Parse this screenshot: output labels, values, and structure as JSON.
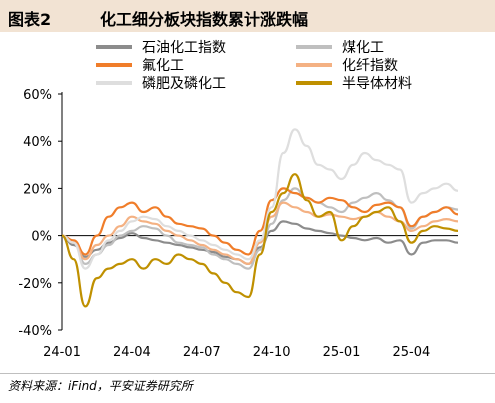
{
  "header": {
    "figure_label": "图表2",
    "title": "化工细分板块指数累计涨跌幅"
  },
  "footer": {
    "source": "资料来源：iFind，平安证券研究所"
  },
  "chart_data": {
    "type": "line",
    "title": "化工细分板块指数累计涨跌幅",
    "xlabel": "",
    "ylabel": "",
    "x_ticks": [
      "24-01",
      "24-04",
      "24-07",
      "24-10",
      "25-01",
      "25-04"
    ],
    "y_ticks": [
      "60%",
      "40%",
      "20%",
      "0%",
      "-20%",
      "-40%"
    ],
    "ylim": [
      -40,
      60
    ],
    "grid": false,
    "legend_position": "top",
    "x": [
      "2024-01",
      "2024-01",
      "2024-02",
      "2024-02",
      "2024-03",
      "2024-03",
      "2024-04",
      "2024-04",
      "2024-05",
      "2024-05",
      "2024-06",
      "2024-06",
      "2024-07",
      "2024-07",
      "2024-08",
      "2024-08",
      "2024-09",
      "2024-09",
      "2024-10",
      "2024-10",
      "2024-11",
      "2024-11",
      "2024-12",
      "2024-12",
      "2025-01",
      "2025-01",
      "2025-02",
      "2025-02",
      "2025-03",
      "2025-03",
      "2025-04",
      "2025-04",
      "2025-05",
      "2025-05",
      "2025-06"
    ],
    "series": [
      {
        "name": "石油化工指数",
        "color": "#8c8c8c",
        "values": [
          0,
          -4,
          -9,
          -6,
          -3,
          -1,
          1,
          -1,
          -2,
          -3,
          -4,
          -5,
          -6,
          -7,
          -9,
          -10,
          -12,
          -5,
          2,
          6,
          5,
          3,
          2,
          1,
          0,
          -1,
          -2,
          -1,
          -3,
          -2,
          -8,
          -3,
          -2,
          -2,
          -3
        ]
      },
      {
        "name": "煤化工",
        "color": "#bfbfbf",
        "values": [
          0,
          -3,
          -12,
          -8,
          -4,
          0,
          2,
          4,
          3,
          0,
          -3,
          -4,
          -5,
          -8,
          -10,
          -12,
          -14,
          -6,
          5,
          15,
          20,
          16,
          14,
          12,
          10,
          14,
          16,
          18,
          15,
          12,
          3,
          8,
          10,
          12,
          11
        ]
      },
      {
        "name": "氟化工",
        "color": "#f07d2a",
        "values": [
          0,
          -2,
          -8,
          0,
          8,
          12,
          14,
          10,
          12,
          8,
          5,
          4,
          3,
          0,
          -3,
          -6,
          -8,
          2,
          15,
          20,
          18,
          16,
          14,
          16,
          15,
          12,
          10,
          13,
          14,
          12,
          4,
          8,
          10,
          12,
          9
        ]
      },
      {
        "name": "化纤指数",
        "color": "#f4b183",
        "values": [
          0,
          -3,
          -10,
          -4,
          0,
          4,
          8,
          6,
          5,
          2,
          0,
          -2,
          -4,
          -6,
          -8,
          -10,
          -12,
          -3,
          8,
          14,
          12,
          10,
          8,
          9,
          8,
          7,
          8,
          10,
          8,
          6,
          2,
          4,
          6,
          7,
          6
        ]
      },
      {
        "name": "磷肥及磷化工",
        "color": "#dedede",
        "values": [
          0,
          -3,
          -14,
          -8,
          -2,
          2,
          6,
          8,
          7,
          4,
          2,
          0,
          -2,
          -4,
          -6,
          -8,
          -10,
          -2,
          12,
          35,
          45,
          38,
          30,
          28,
          24,
          30,
          35,
          32,
          30,
          28,
          14,
          18,
          20,
          22,
          19
        ]
      },
      {
        "name": "半导体材料",
        "color": "#bf9000",
        "values": [
          0,
          -10,
          -30,
          -18,
          -14,
          -12,
          -10,
          -14,
          -10,
          -12,
          -8,
          -10,
          -12,
          -16,
          -20,
          -24,
          -26,
          -8,
          10,
          18,
          26,
          15,
          8,
          10,
          -2,
          4,
          8,
          10,
          12,
          6,
          -3,
          2,
          4,
          3,
          2
        ]
      }
    ]
  }
}
